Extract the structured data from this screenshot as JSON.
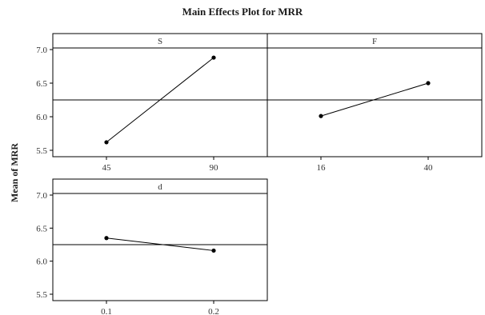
{
  "chart_data": {
    "type": "line",
    "title": "Main Effects Plot for MRR",
    "ylabel": "Mean of MRR",
    "ylim": [
      5.5,
      7.0
    ],
    "yticks": [
      "5.5",
      "6.0",
      "6.5",
      "7.0"
    ],
    "grand_mean": 6.25,
    "panels": [
      {
        "factor": "S",
        "categories": [
          "45",
          "90"
        ],
        "values": [
          5.62,
          6.88
        ]
      },
      {
        "factor": "F",
        "categories": [
          "16",
          "40"
        ],
        "values": [
          6.01,
          6.5
        ]
      },
      {
        "factor": "d",
        "categories": [
          "0.1",
          "0.2"
        ],
        "values": [
          6.35,
          6.16
        ]
      }
    ]
  }
}
